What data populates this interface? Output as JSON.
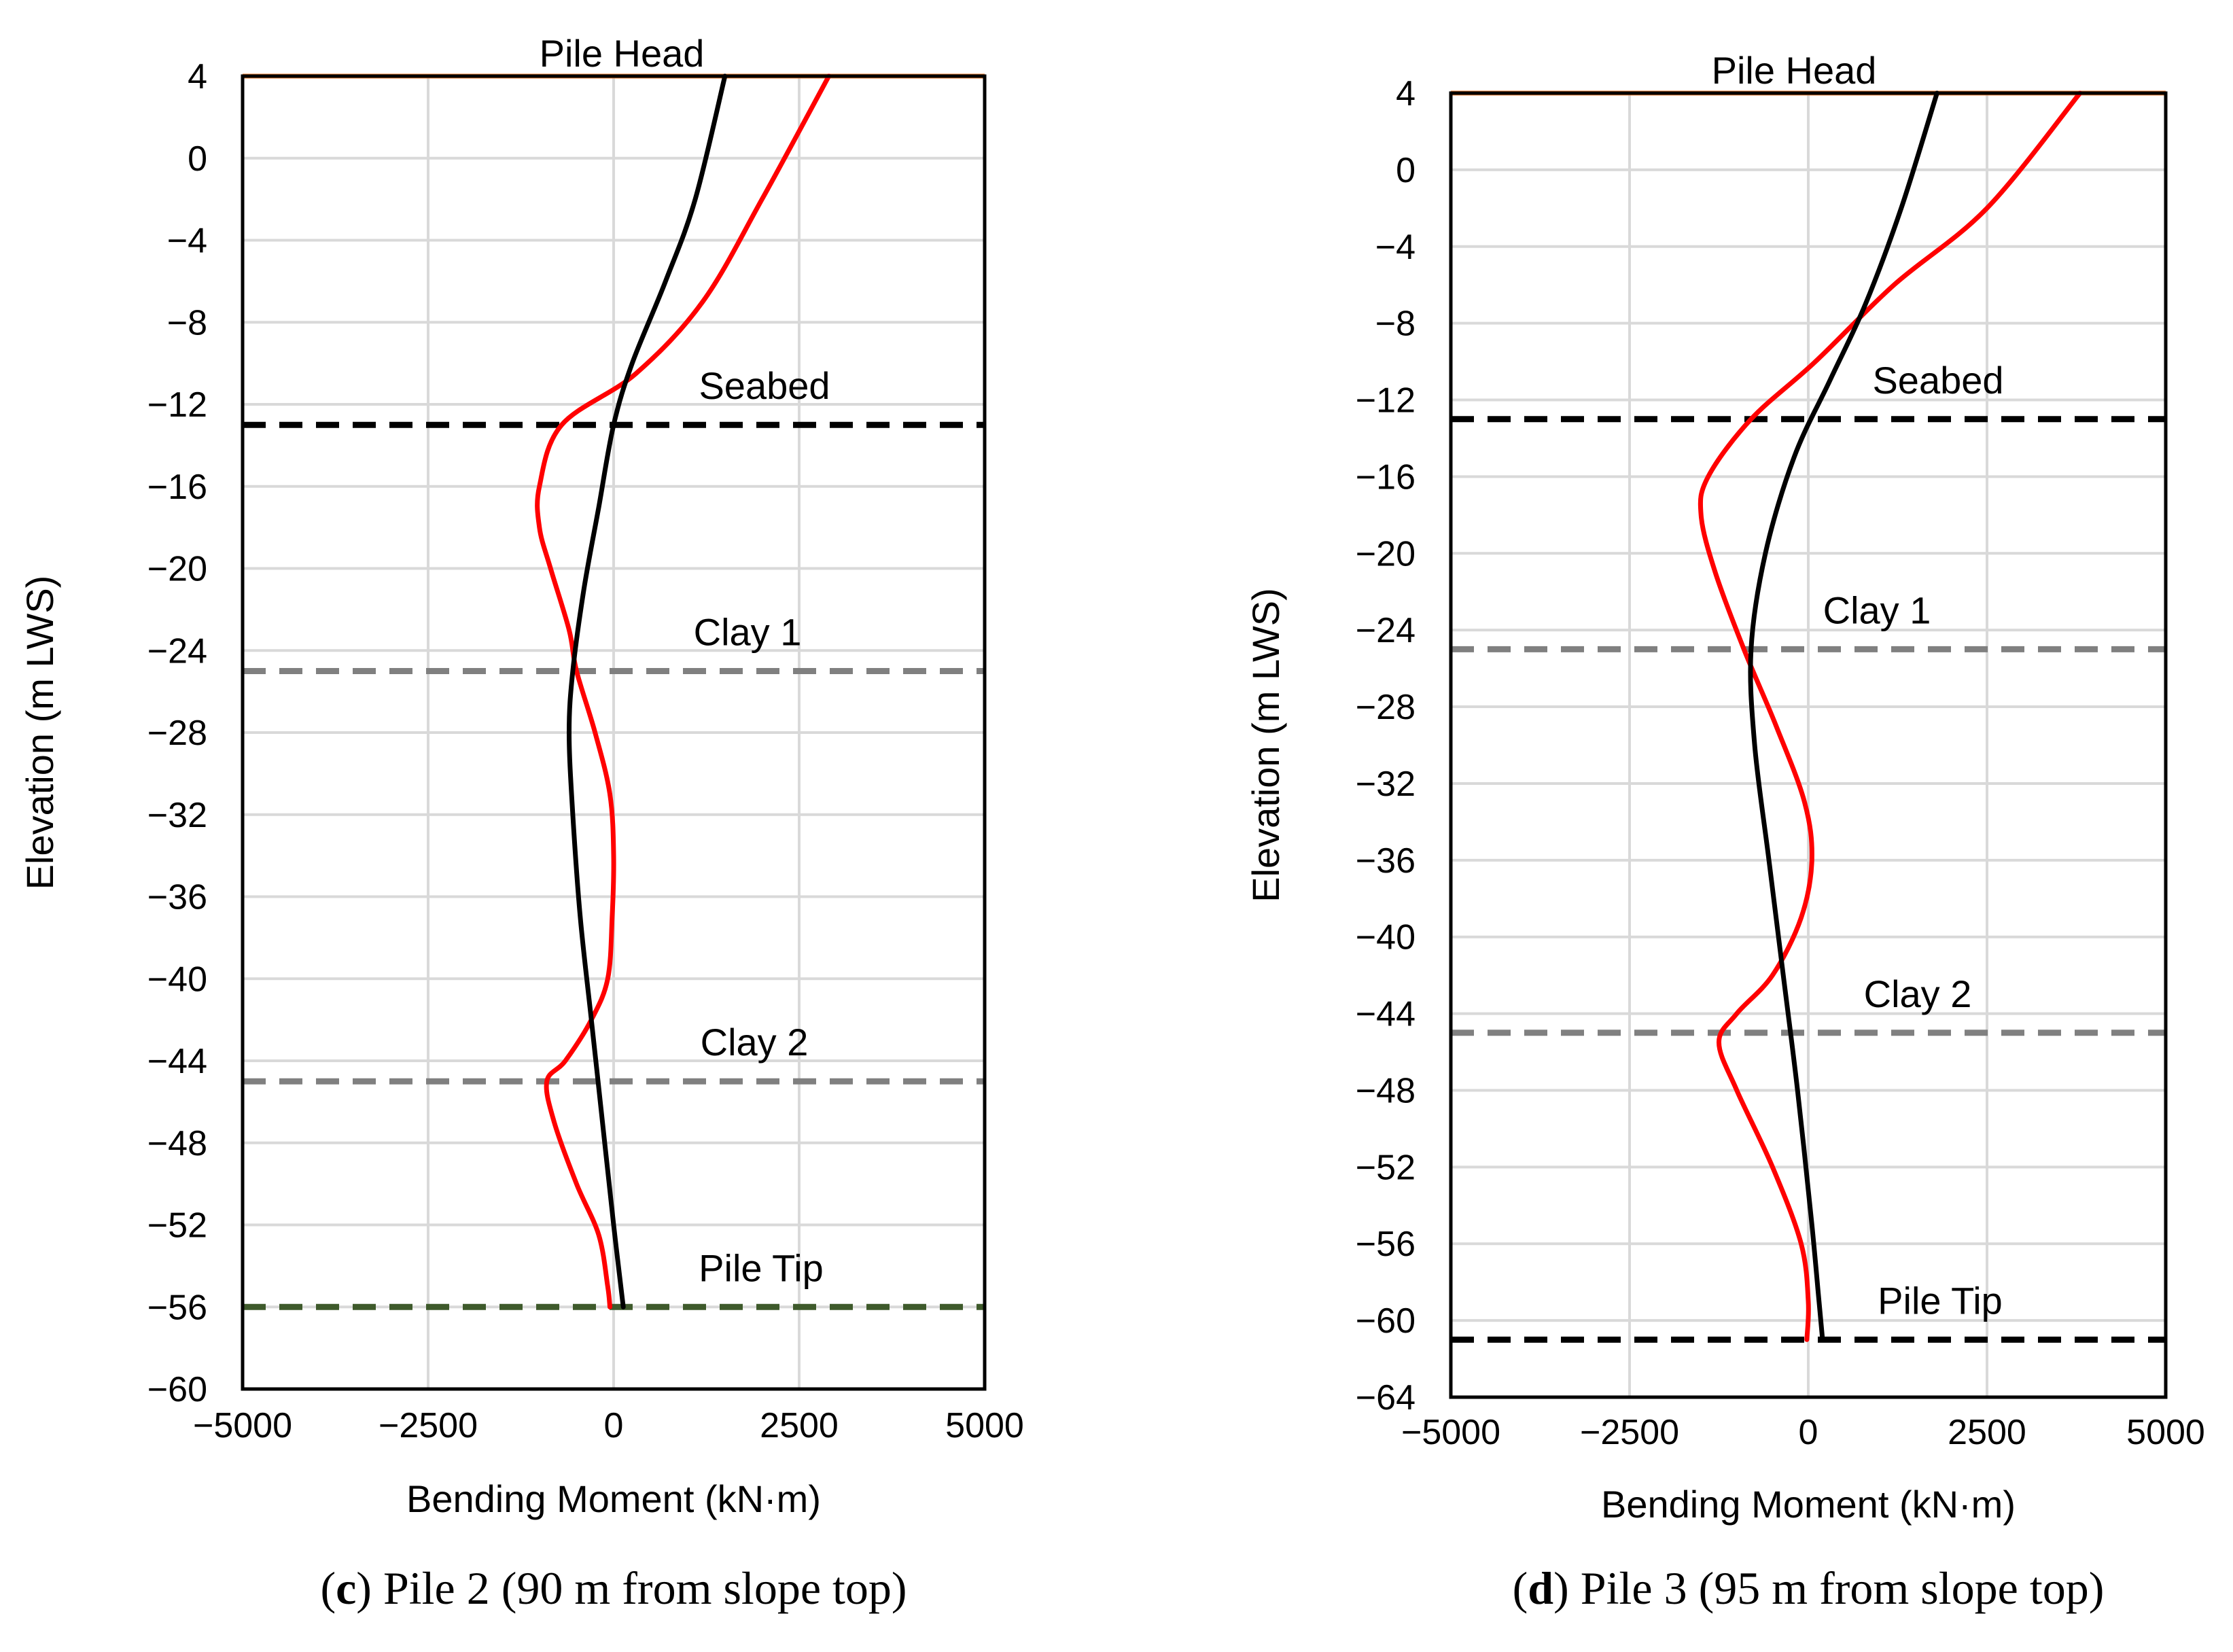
{
  "chart_data": [
    {
      "type": "line",
      "panel_letter": "c",
      "caption": "Pile 2 (90 m from slope top)",
      "xlabel": "Bending Moment (kN·m)",
      "ylabel": "Elevation (m LWS)",
      "xlim": [
        -5000,
        5000
      ],
      "ylim": [
        -60,
        4
      ],
      "xticks": [
        -5000,
        -2500,
        0,
        2500,
        5000
      ],
      "xtick_labels": [
        "−5000",
        "−2500",
        "0",
        "2500",
        "5000"
      ],
      "yticks": [
        4,
        0,
        -4,
        -8,
        -12,
        -16,
        -20,
        -24,
        -28,
        -32,
        -36,
        -40,
        -44,
        -48,
        -52,
        -56,
        -60
      ],
      "ytick_labels": [
        "4",
        "0",
        "−4",
        "−8",
        "−12",
        "−16",
        "−20",
        "−24",
        "−28",
        "−32",
        "−36",
        "−40",
        "−44",
        "−48",
        "−52",
        "−56",
        "−60"
      ],
      "grid": true,
      "reference_lines": [
        {
          "name": "Pile Head",
          "elevation": 4,
          "color": "#ED7D31",
          "style": "solid"
        },
        {
          "name": "Seabed",
          "elevation": -13,
          "color": "#000000",
          "style": "dashed"
        },
        {
          "name": "Clay 1",
          "elevation": -25,
          "color": "#808080",
          "style": "dashed"
        },
        {
          "name": "Clay 2",
          "elevation": -45,
          "color": "#808080",
          "style": "dashed"
        },
        {
          "name": "Pile Tip",
          "elevation": -56,
          "color": "#3E5A2B",
          "style": "dashed"
        }
      ],
      "series": [
        {
          "name": "red curve",
          "color": "#FF0000",
          "points": [
            [
              2900,
              4
            ],
            [
              2000,
              -2
            ],
            [
              1200,
              -7
            ],
            [
              300,
              -10.5
            ],
            [
              -700,
              -13
            ],
            [
              -1000,
              -16
            ],
            [
              -1000,
              -18
            ],
            [
              -850,
              -20
            ],
            [
              -600,
              -23
            ],
            [
              -500,
              -25
            ],
            [
              -250,
              -28
            ],
            [
              -50,
              -31
            ],
            [
              0,
              -34
            ],
            [
              -20,
              -37
            ],
            [
              -80,
              -40
            ],
            [
              -300,
              -42
            ],
            [
              -650,
              -44
            ],
            [
              -900,
              -45
            ],
            [
              -800,
              -47
            ],
            [
              -500,
              -50
            ],
            [
              -200,
              -52.5
            ],
            [
              -80,
              -55
            ],
            [
              -50,
              -56
            ]
          ]
        },
        {
          "name": "black curve",
          "color": "#000000",
          "points": [
            [
              1500,
              4
            ],
            [
              1100,
              -2
            ],
            [
              700,
              -6
            ],
            [
              250,
              -10
            ],
            [
              0,
              -13
            ],
            [
              -200,
              -17
            ],
            [
              -400,
              -21
            ],
            [
              -550,
              -25
            ],
            [
              -600,
              -28
            ],
            [
              -550,
              -32
            ],
            [
              -450,
              -37
            ],
            [
              -300,
              -42
            ],
            [
              -150,
              -47
            ],
            [
              0,
              -52
            ],
            [
              130,
              -56
            ]
          ]
        }
      ]
    },
    {
      "type": "line",
      "panel_letter": "d",
      "caption": "Pile 3 (95 m from slope top)",
      "xlabel": "Bending Moment (kN·m)",
      "ylabel": "Elevation (m LWS)",
      "xlim": [
        -5000,
        5000
      ],
      "ylim": [
        -64,
        4
      ],
      "xticks": [
        -5000,
        -2500,
        0,
        2500,
        5000
      ],
      "xtick_labels": [
        "−5000",
        "−2500",
        "0",
        "2500",
        "5000"
      ],
      "yticks": [
        4,
        0,
        -4,
        -8,
        -12,
        -16,
        -20,
        -24,
        -28,
        -32,
        -36,
        -40,
        -44,
        -48,
        -52,
        -56,
        -60,
        -64
      ],
      "ytick_labels": [
        "4",
        "0",
        "−4",
        "−8",
        "−12",
        "−16",
        "−20",
        "−24",
        "−28",
        "−32",
        "−36",
        "−40",
        "−44",
        "−48",
        "−52",
        "−56",
        "−60",
        "−64"
      ],
      "grid": true,
      "reference_lines": [
        {
          "name": "Pile Head",
          "elevation": 4,
          "color": "#ED7D31",
          "style": "solid"
        },
        {
          "name": "Seabed",
          "elevation": -13,
          "color": "#000000",
          "style": "dashed"
        },
        {
          "name": "Clay 1",
          "elevation": -25,
          "color": "#808080",
          "style": "dashed"
        },
        {
          "name": "Clay 2",
          "elevation": -45,
          "color": "#808080",
          "style": "dashed"
        },
        {
          "name": "Pile Tip",
          "elevation": -61,
          "color": "#000000",
          "style": "dashed"
        }
      ],
      "series": [
        {
          "name": "red curve",
          "color": "#FF0000",
          "points": [
            [
              3800,
              4
            ],
            [
              2500,
              -2
            ],
            [
              1200,
              -6
            ],
            [
              100,
              -10
            ],
            [
              -800,
              -13
            ],
            [
              -1400,
              -16
            ],
            [
              -1500,
              -18
            ],
            [
              -1300,
              -21
            ],
            [
              -900,
              -25
            ],
            [
              -450,
              -29
            ],
            [
              -50,
              -33
            ],
            [
              50,
              -36
            ],
            [
              -100,
              -39
            ],
            [
              -500,
              -42
            ],
            [
              -1000,
              -44
            ],
            [
              -1250,
              -45.5
            ],
            [
              -1000,
              -48
            ],
            [
              -500,
              -52
            ],
            [
              -100,
              -56
            ],
            [
              0,
              -59
            ],
            [
              -20,
              -61
            ]
          ]
        },
        {
          "name": "black curve",
          "color": "#000000",
          "points": [
            [
              1800,
              4
            ],
            [
              1300,
              -2
            ],
            [
              800,
              -7
            ],
            [
              300,
              -11
            ],
            [
              -200,
              -15
            ],
            [
              -600,
              -20
            ],
            [
              -800,
              -25
            ],
            [
              -750,
              -30
            ],
            [
              -550,
              -36
            ],
            [
              -350,
              -42
            ],
            [
              -150,
              -48
            ],
            [
              50,
              -55
            ],
            [
              150,
              -59
            ],
            [
              200,
              -61
            ]
          ]
        }
      ]
    }
  ]
}
